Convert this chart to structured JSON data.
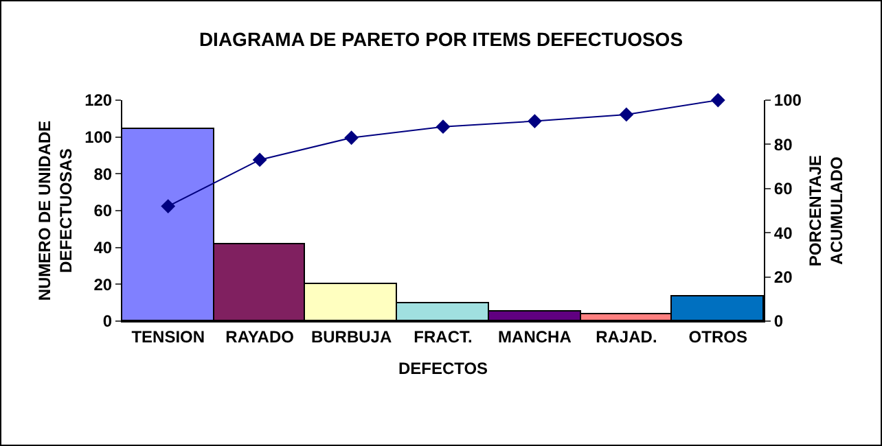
{
  "chart_data": {
    "type": "bar",
    "title": "DIAGRAMA DE PARETO POR ITEMS DEFECTUOSOS",
    "xlabel": "DEFECTOS",
    "ylabel": "NUMERO DE UNIDADE DEFECTUOSAS",
    "y2label": "PORCENTAJE ACUMULADO",
    "categories": [
      "TENSION",
      "RAYADO",
      "BURBUJA",
      "FRACT.",
      "MANCHA",
      "RAJAD.",
      "OTROS"
    ],
    "series": [
      {
        "values": [
          104,
          42,
          20,
          10,
          5,
          4,
          13.5
        ],
        "colors": [
          "#8080ff",
          "#802060",
          "#ffffc0",
          "#a0e0e0",
          "#600080",
          "#ff8080",
          "#0070c0"
        ]
      },
      {
        "type": "line",
        "axis": "y2",
        "color": "#000080",
        "values": [
          52,
          73,
          83,
          88,
          90.5,
          93.5,
          100
        ]
      }
    ],
    "ylim": [
      0,
      120
    ],
    "yticks": [
      0,
      20,
      40,
      60,
      80,
      100,
      120
    ],
    "y2lim": [
      0,
      100
    ],
    "y2ticks": [
      0,
      20,
      40,
      60,
      80,
      100
    ],
    "marker": "diamond",
    "grid": false,
    "legend": false
  }
}
